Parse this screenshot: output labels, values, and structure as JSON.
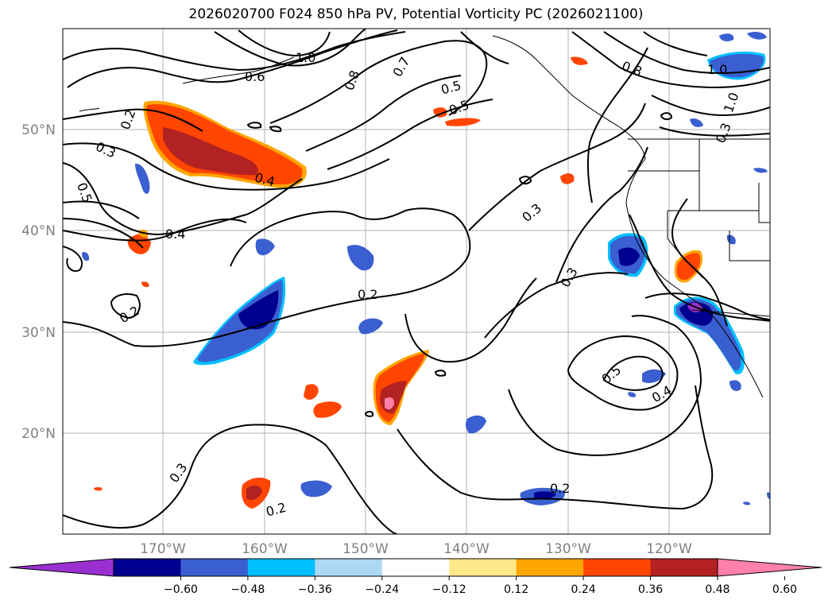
{
  "title": "2026020700 F024 850 hPa PV, Potential Vorticity PC (2026021100)",
  "lat_labels": [
    "50°N",
    "40°N",
    "30°N",
    "20°N"
  ],
  "lon_labels": [
    "170°W",
    "160°W",
    "150°W",
    "140°W",
    "130°W",
    "120°W"
  ],
  "contour_labels": [
    "0.2",
    "0.3",
    "0.5",
    "0.4",
    "0.4",
    "0.2",
    "0.3",
    "0.5",
    "0.6",
    "1.0",
    "0.8",
    "0.7",
    "0.5",
    "0.3",
    "0.3",
    "0.2",
    "0.5",
    "0.4",
    "0.2",
    "0.3",
    "0.2",
    "1.0",
    "1.0",
    "0.8"
  ],
  "colorbar": {
    "ticks": [
      "−0.60",
      "−0.48",
      "−0.36",
      "−0.24",
      "−0.12",
      "0.12",
      "0.24",
      "0.36",
      "0.48",
      "0.60"
    ],
    "colors": [
      "#9b30d0",
      "#000090",
      "#3a5fd0",
      "#00bfff",
      "#add8f5",
      "#ffffff",
      "#fde88a",
      "#ffa500",
      "#ff4500",
      "#b22222",
      "#ff80a8"
    ]
  }
}
